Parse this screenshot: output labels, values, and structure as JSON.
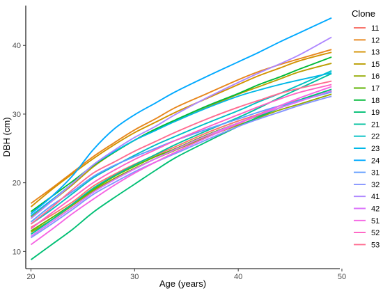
{
  "chart_data": {
    "type": "line",
    "title": "",
    "xlabel": "Age (years)",
    "ylabel": "DBH (cm)",
    "xlim": [
      19.5,
      49.8
    ],
    "ylim": [
      7.5,
      45.8
    ],
    "xticks": [
      "20",
      "30",
      "40",
      "50"
    ],
    "yticks": [
      "10",
      "20",
      "30",
      "40"
    ],
    "grid": false,
    "legend": {
      "title": "Clone",
      "position": "right"
    },
    "x": [
      20,
      22,
      24,
      26,
      28,
      30,
      32,
      34,
      37,
      40,
      42,
      44,
      46,
      49
    ],
    "series": [
      {
        "name": "11",
        "color": "#F8766D",
        "values": [
          13.5,
          15.3,
          17.2,
          19.5,
          21.2,
          22.7,
          24.0,
          25.3,
          27.3,
          29.0,
          30.0,
          31.2,
          32.1,
          33.2
        ]
      },
      {
        "name": "12",
        "color": "#E7861B",
        "values": [
          17.0,
          19.2,
          21.5,
          23.8,
          25.8,
          27.7,
          29.3,
          31.0,
          33.0,
          35.0,
          36.2,
          37.2,
          38.1,
          39.4
        ]
      },
      {
        "name": "13",
        "color": "#D39200",
        "values": [
          16.5,
          19.0,
          21.3,
          23.5,
          25.5,
          27.3,
          28.8,
          30.3,
          32.3,
          34.3,
          35.6,
          36.7,
          37.8,
          39.0
        ]
      },
      {
        "name": "15",
        "color": "#BA9E00",
        "values": [
          15.0,
          17.3,
          19.7,
          22.3,
          24.4,
          26.2,
          27.8,
          29.0,
          31.0,
          32.9,
          34.0,
          35.1,
          36.2,
          37.4
        ]
      },
      {
        "name": "16",
        "color": "#93AA00",
        "values": [
          12.8,
          14.6,
          16.7,
          18.8,
          20.6,
          22.1,
          23.5,
          24.8,
          26.7,
          28.4,
          29.5,
          30.6,
          31.5,
          32.9
        ]
      },
      {
        "name": "17",
        "color": "#5EB300",
        "values": [
          13.0,
          14.9,
          16.9,
          19.0,
          20.9,
          22.4,
          23.8,
          25.0,
          27.0,
          28.7,
          29.8,
          30.9,
          32.0,
          33.3
        ]
      },
      {
        "name": "18",
        "color": "#00BA38",
        "values": [
          15.8,
          18.0,
          20.2,
          22.5,
          24.4,
          26.2,
          27.8,
          29.2,
          31.2,
          33.0,
          34.3,
          35.4,
          36.6,
          38.3
        ]
      },
      {
        "name": "19",
        "color": "#00BF74",
        "values": [
          8.8,
          11.0,
          13.2,
          15.7,
          17.8,
          19.8,
          21.8,
          23.7,
          26.0,
          28.2,
          29.6,
          30.9,
          32.1,
          33.6
        ]
      },
      {
        "name": "21",
        "color": "#00C19F",
        "values": [
          12.5,
          14.6,
          16.9,
          19.2,
          21.0,
          22.6,
          24.1,
          25.6,
          27.6,
          29.5,
          30.9,
          32.4,
          33.8,
          35.9
        ]
      },
      {
        "name": "22",
        "color": "#00BFC4",
        "values": [
          14.0,
          16.1,
          18.4,
          20.7,
          22.4,
          24.0,
          25.5,
          26.8,
          28.7,
          30.5,
          31.8,
          33.0,
          34.3,
          36.3
        ]
      },
      {
        "name": "23",
        "color": "#00B8E7",
        "values": [
          15.2,
          17.5,
          19.9,
          22.6,
          24.5,
          26.2,
          27.6,
          29.0,
          30.9,
          32.6,
          33.5,
          34.3,
          35.0,
          36.0
        ]
      },
      {
        "name": "24",
        "color": "#00A9FF",
        "values": [
          15.5,
          18.0,
          21.0,
          24.8,
          27.8,
          29.9,
          31.6,
          33.3,
          35.5,
          37.6,
          39.0,
          40.5,
          41.9,
          44.0
        ]
      },
      {
        "name": "31",
        "color": "#619CFF",
        "values": [
          14.3,
          16.7,
          18.7,
          20.9,
          22.5,
          23.8,
          25.0,
          26.2,
          27.8,
          29.3,
          30.3,
          31.2,
          32.0,
          33.2
        ]
      },
      {
        "name": "32",
        "color": "#8494FF",
        "values": [
          12.0,
          14.0,
          16.1,
          18.3,
          20.0,
          21.6,
          23.0,
          24.3,
          26.3,
          28.2,
          29.3,
          30.3,
          31.3,
          32.6
        ]
      },
      {
        "name": "41",
        "color": "#AE87FF",
        "values": [
          14.8,
          17.3,
          19.9,
          22.6,
          24.7,
          26.6,
          28.2,
          30.0,
          32.4,
          34.6,
          36.0,
          37.3,
          38.7,
          41.2
        ]
      },
      {
        "name": "42",
        "color": "#DB72FB",
        "values": [
          12.2,
          14.3,
          16.4,
          18.6,
          20.4,
          22.0,
          23.5,
          24.9,
          26.9,
          28.7,
          29.9,
          30.9,
          31.9,
          33.4
        ]
      },
      {
        "name": "51",
        "color": "#F564E3",
        "values": [
          11.0,
          13.2,
          15.5,
          17.6,
          19.6,
          21.4,
          23.0,
          24.5,
          26.6,
          28.6,
          29.9,
          31.2,
          32.4,
          34.0
        ]
      },
      {
        "name": "52",
        "color": "#FF61C3",
        "values": [
          13.3,
          15.6,
          17.8,
          20.0,
          21.8,
          23.4,
          24.8,
          26.2,
          28.1,
          29.9,
          31.1,
          32.2,
          33.2,
          34.3
        ]
      },
      {
        "name": "53",
        "color": "#FF6C91",
        "values": [
          14.0,
          16.4,
          19.0,
          21.4,
          23.0,
          24.6,
          26.0,
          27.4,
          29.3,
          31.0,
          32.0,
          33.0,
          33.8,
          34.8
        ]
      }
    ]
  }
}
